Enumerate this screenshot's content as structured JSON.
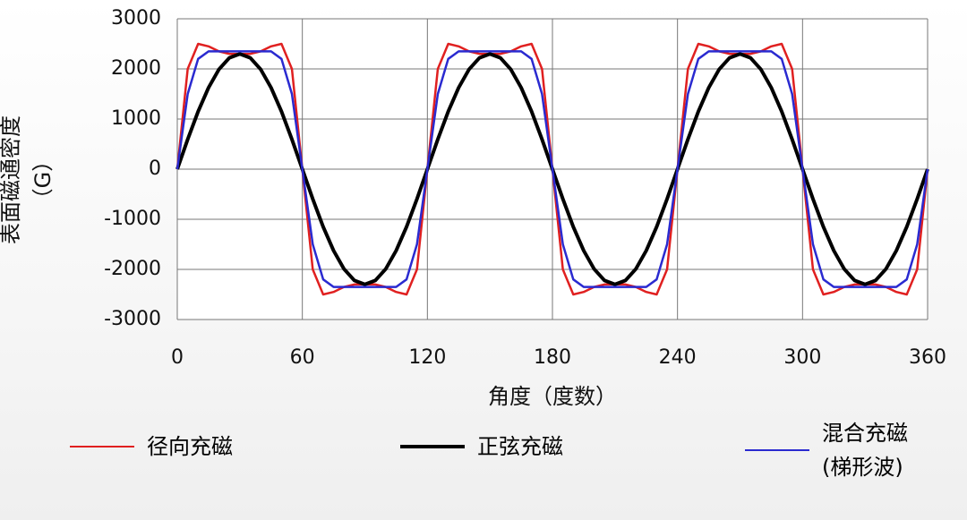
{
  "chart_data": {
    "type": "line",
    "y_label": "表面磁通密度\n（G）",
    "x_label": "角度（度数）",
    "x": [
      0,
      5,
      10,
      15,
      20,
      25,
      30,
      35,
      40,
      45,
      50,
      55,
      60,
      65,
      70,
      75,
      80,
      85,
      90,
      95,
      100,
      105,
      110,
      115,
      120,
      125,
      130,
      135,
      140,
      145,
      150,
      155,
      160,
      165,
      170,
      175,
      180,
      185,
      190,
      195,
      200,
      205,
      210,
      215,
      220,
      225,
      230,
      235,
      240,
      245,
      250,
      255,
      260,
      265,
      270,
      275,
      280,
      285,
      290,
      295,
      300,
      305,
      310,
      315,
      320,
      325,
      330,
      335,
      340,
      345,
      350,
      355,
      360
    ],
    "series": [
      {
        "name": "径向充磁",
        "color": "#e02020",
        "width": 2.5,
        "values": [
          0,
          2000,
          2500,
          2450,
          2350,
          2300,
          2300,
          2300,
          2350,
          2450,
          2500,
          2000,
          0,
          -2000,
          -2500,
          -2450,
          -2350,
          -2300,
          -2300,
          -2300,
          -2350,
          -2450,
          -2500,
          -2000,
          0,
          2000,
          2500,
          2450,
          2350,
          2300,
          2300,
          2300,
          2350,
          2450,
          2500,
          2000,
          0,
          -2000,
          -2500,
          -2450,
          -2350,
          -2300,
          -2300,
          -2300,
          -2350,
          -2450,
          -2500,
          -2000,
          0,
          2000,
          2500,
          2450,
          2350,
          2300,
          2300,
          2300,
          2350,
          2450,
          2500,
          2000,
          0,
          -2000,
          -2500,
          -2450,
          -2350,
          -2300,
          -2300,
          -2300,
          -2350,
          -2450,
          -2500,
          -2000,
          0
        ]
      },
      {
        "name": "正弦充磁",
        "color": "#000000",
        "width": 4,
        "values": [
          0,
          595,
          1150,
          1626,
          1992,
          2222,
          2300,
          2222,
          1992,
          1626,
          1150,
          595,
          0,
          -595,
          -1150,
          -1626,
          -1992,
          -2222,
          -2300,
          -2222,
          -1992,
          -1626,
          -1150,
          -595,
          0,
          595,
          1150,
          1626,
          1992,
          2222,
          2300,
          2222,
          1992,
          1626,
          1150,
          595,
          0,
          -595,
          -1150,
          -1626,
          -1992,
          -2222,
          -2300,
          -2222,
          -1992,
          -1626,
          -1150,
          -595,
          0,
          595,
          1150,
          1626,
          1992,
          2222,
          2300,
          2222,
          1992,
          1626,
          1150,
          595,
          0,
          -595,
          -1150,
          -1626,
          -1992,
          -2222,
          -2300,
          -2222,
          -1992,
          -1626,
          -1150,
          -595,
          0
        ]
      },
      {
        "name": "混合充磁\n(梯形波)",
        "color": "#2a2ad0",
        "width": 2.5,
        "values": [
          0,
          1500,
          2200,
          2350,
          2350,
          2350,
          2350,
          2350,
          2350,
          2350,
          2200,
          1500,
          0,
          -1500,
          -2200,
          -2350,
          -2350,
          -2350,
          -2350,
          -2350,
          -2350,
          -2350,
          -2200,
          -1500,
          0,
          1500,
          2200,
          2350,
          2350,
          2350,
          2350,
          2350,
          2350,
          2350,
          2200,
          1500,
          0,
          -1500,
          -2200,
          -2350,
          -2350,
          -2350,
          -2350,
          -2350,
          -2350,
          -2350,
          -2200,
          -1500,
          0,
          1500,
          2200,
          2350,
          2350,
          2350,
          2350,
          2350,
          2350,
          2350,
          2200,
          1500,
          0,
          -1500,
          -2200,
          -2350,
          -2350,
          -2350,
          -2350,
          -2350,
          -2350,
          -2350,
          -2200,
          -1500,
          0
        ]
      }
    ],
    "xlim": [
      0,
      360
    ],
    "xticks": [
      0,
      60,
      120,
      180,
      240,
      300,
      360
    ],
    "ylim": [
      -3000,
      3000
    ],
    "yticks": [
      -3000,
      -2000,
      -1000,
      0,
      1000,
      2000,
      3000
    ],
    "grid": true
  }
}
